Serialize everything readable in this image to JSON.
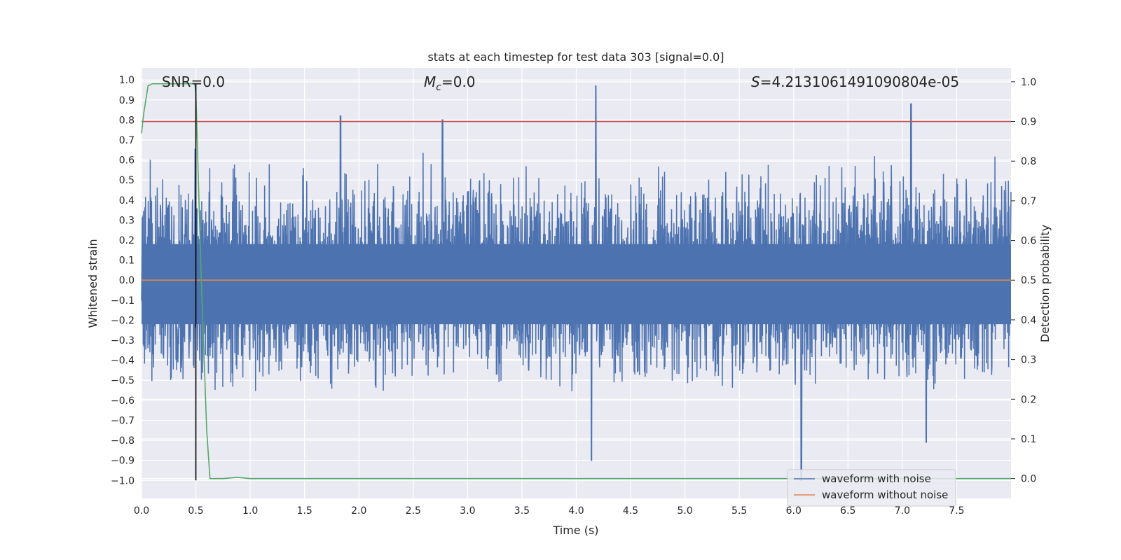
{
  "chart_data": {
    "type": "line",
    "title": "stats at each timestep for test data 303 [signal=0.0]",
    "xlabel": "Time (s)",
    "ylabel": "Whitened strain",
    "y2label": "Detection probability",
    "xlim": [
      0.0,
      8.0
    ],
    "ylim": [
      -1.09,
      1.06
    ],
    "y2lim": [
      -0.05,
      1.035
    ],
    "xticks": [
      "0.0",
      "0.5",
      "1.0",
      "1.5",
      "2.0",
      "2.5",
      "3.0",
      "3.5",
      "4.0",
      "4.5",
      "5.0",
      "5.5",
      "6.0",
      "6.5",
      "7.0",
      "7.5"
    ],
    "yticks": [
      "1.0",
      "0.9",
      "0.8",
      "0.7",
      "0.6",
      "0.5",
      "0.4",
      "0.3",
      "0.2",
      "0.1",
      "0.0",
      "−0.1",
      "−0.2",
      "−0.3",
      "−0.4",
      "−0.5",
      "−0.6",
      "−0.7",
      "−0.8",
      "−0.9",
      "−1.0"
    ],
    "y2ticks": [
      "1.0",
      "0.9",
      "0.8",
      "0.7",
      "0.6",
      "0.5",
      "0.4",
      "0.3",
      "0.2",
      "0.1",
      "0.0"
    ],
    "grid": true,
    "legend_position": "lower right",
    "annotations": {
      "snr": "SNR=0.0",
      "mc_symbol": "M",
      "mc_sub": "c",
      "mc_value": "=0.0",
      "s_symbol": "S",
      "s_value": "=4.2131061491090804e-05"
    },
    "series": [
      {
        "name": "waveform with noise",
        "axis": "left",
        "color": "#4c72b0",
        "description_peaks": [
          {
            "x": 1.83,
            "y": 0.82
          },
          {
            "x": 2.77,
            "y": 0.8
          },
          {
            "x": 4.18,
            "y": 0.97
          },
          {
            "x": 7.08,
            "y": 0.88
          },
          {
            "x": 4.14,
            "y": -0.9
          },
          {
            "x": 6.07,
            "y": -1.0
          },
          {
            "x": 7.22,
            "y": -0.81
          }
        ],
        "envelope": {
          "pos_typical": 0.5,
          "neg_typical": -0.45,
          "core": [
            -0.22,
            0.18
          ]
        }
      },
      {
        "name": "waveform without noise",
        "axis": "left",
        "color": "#dd8452",
        "x": [
          0.0,
          8.0
        ],
        "y": [
          0.0,
          0.0
        ]
      },
      {
        "axis": "right",
        "color": "#55a868",
        "x": [
          0.0,
          0.02,
          0.06,
          0.1,
          0.15,
          0.2,
          0.3,
          0.4,
          0.49,
          0.5,
          0.55,
          0.6,
          0.63,
          0.75,
          0.88,
          1.0,
          8.0
        ],
        "y": [
          0.87,
          0.92,
          0.99,
          0.995,
          0.995,
          0.995,
          0.995,
          0.995,
          0.995,
          0.97,
          0.5,
          0.12,
          0.0,
          0.0,
          0.003,
          0.0,
          0.0
        ]
      },
      {
        "axis": "right",
        "color": "#c44e52",
        "x": [
          0.0,
          8.0
        ],
        "y": [
          0.9,
          0.9
        ]
      },
      {
        "axis": "left",
        "color": "#000000",
        "x": [
          0.5,
          0.5
        ],
        "y": [
          -1.0,
          0.98
        ]
      }
    ]
  }
}
